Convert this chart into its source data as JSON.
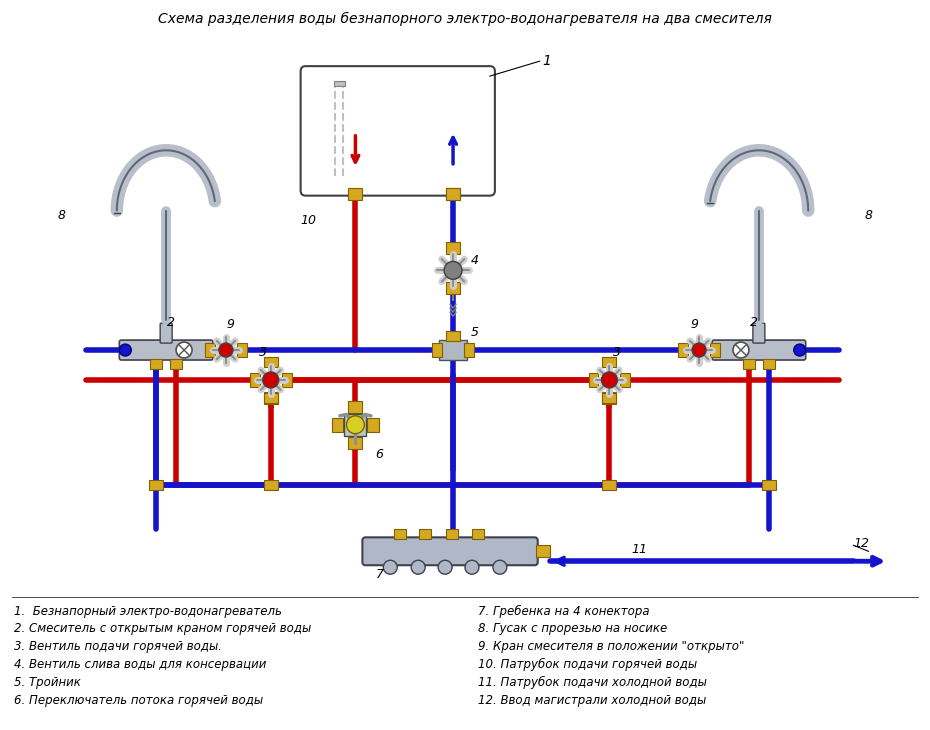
{
  "title": "Схема разделения воды безнапорного электро-водонагревателя на два смесителя",
  "bg_color": "#ffffff",
  "hot_color": "#cc0000",
  "cold_color": "#1414cc",
  "pipe_lw": 4,
  "fitting_color": "#d4a820",
  "body_color": "#b8beca",
  "legend_items": [
    "1.  Безнапорный электро-водонагреватель",
    "2. Смеситель с открытым краном горячей воды",
    "3. Вентиль подачи горячей воды.",
    "4. Вентиль слива воды для консервации",
    "5. Тройник",
    "6. Переключатель потока горячей воды"
  ],
  "legend_items_right": [
    "7. Гребенка на 4 конектора",
    "8. Гусак с прорезью на носике",
    "9. Кран смесителя в положении \"открыто\"",
    "10. Патрубок подачи горячей воды",
    "11. Патрубок подачи холодной воды",
    "12. Ввод магистрали холодной воды"
  ]
}
